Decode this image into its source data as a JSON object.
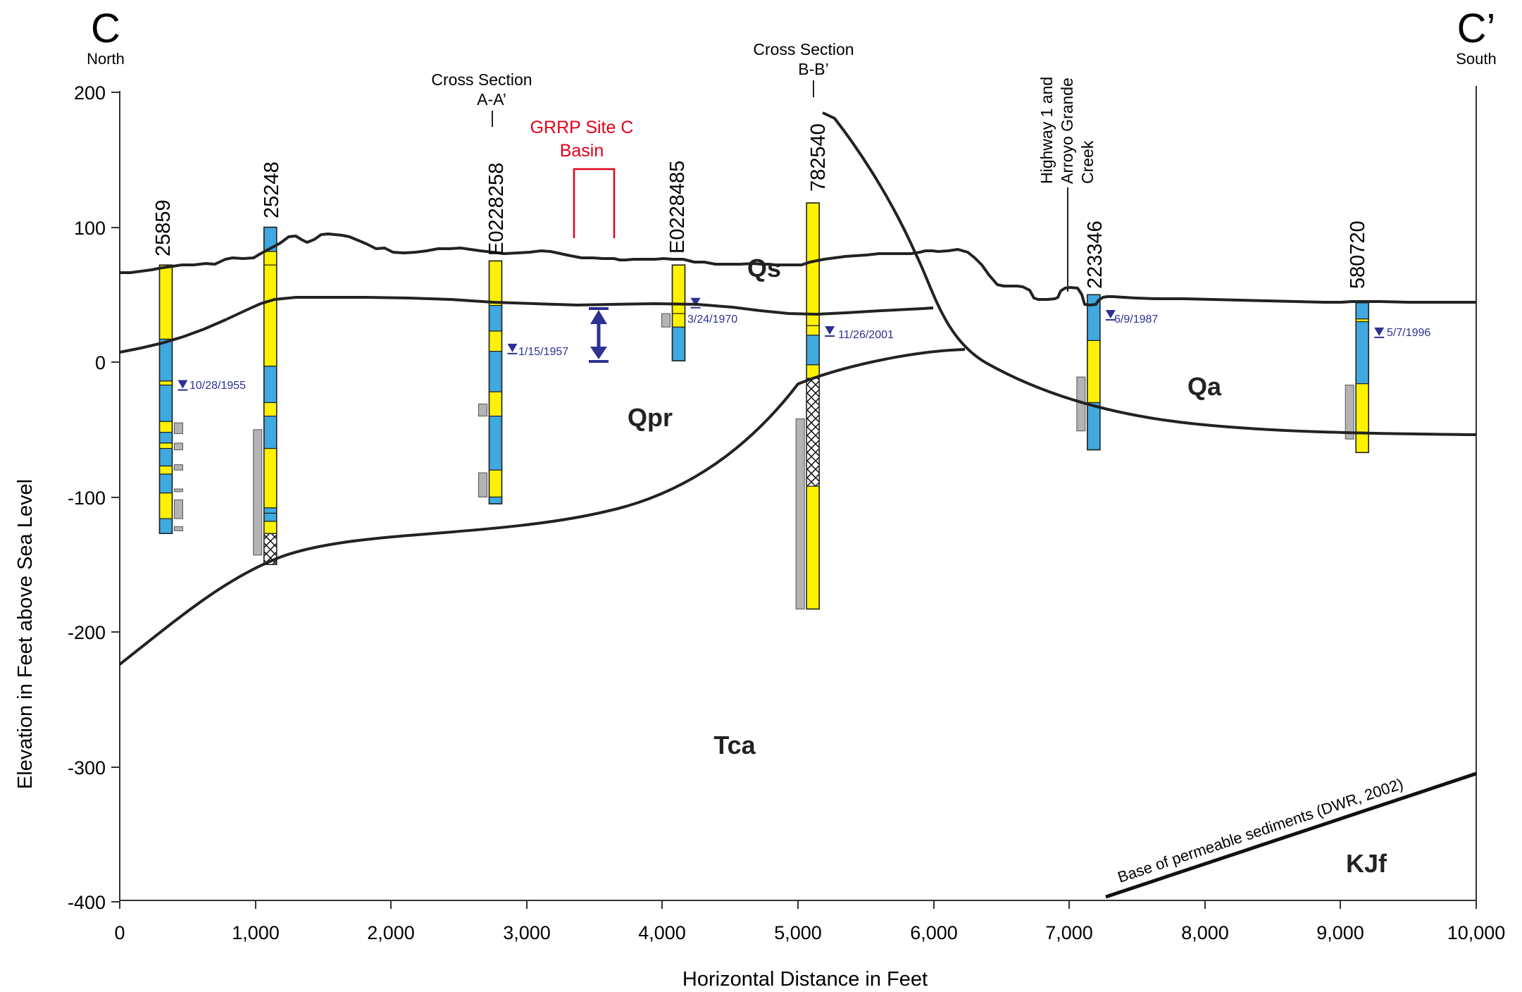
{
  "section": {
    "left_label": "C",
    "left_direction": "North",
    "right_label": "C’",
    "right_direction": "South",
    "y_axis_label": "Elevation in Feet above Sea Level",
    "x_axis_label": "Horizontal Distance in Feet",
    "x_ticks": [
      "0",
      "1,000",
      "2,000",
      "3,000",
      "4,000",
      "5,000",
      "6,000",
      "7,000",
      "8,000",
      "9,000",
      "10,000"
    ],
    "y_ticks": [
      "200",
      "100",
      "0",
      "-100",
      "-200",
      "-300",
      "-400"
    ],
    "xlim": [
      0,
      10000
    ],
    "ylim": [
      -400,
      200
    ]
  },
  "cross_sections": [
    {
      "line1": "Cross Section",
      "line2": "A-A’",
      "x": 2750
    },
    {
      "line1": "Cross Section",
      "line2": "B-B’",
      "x": 5100
    }
  ],
  "basin": {
    "line1": "GRRP Site C",
    "line2": "Basin",
    "color": "#e3001b"
  },
  "highway": {
    "line1": "Highway 1 and",
    "line2": "Arroyo Grande",
    "line3": "Creek",
    "x": 7000
  },
  "units": {
    "qs": "Qs",
    "qpr": "Qpr",
    "qa": "Qa",
    "tca": "Tca",
    "kjf": "KJf"
  },
  "base_label": "Base of permeable sediments (DWR, 2002)",
  "colors": {
    "sand": "#fff200",
    "clay": "#3fa9e0",
    "screen": "#b3b3b3",
    "water": "#2e3092",
    "basin": "#e3001b"
  },
  "wells": [
    {
      "id": "25859",
      "x": 340,
      "top": 72,
      "bottom": -127,
      "water_level": -17,
      "date": "10/28/1955"
    },
    {
      "id": "25248",
      "x": 1110,
      "top": 100,
      "bottom": -150
    },
    {
      "id": "E0228258",
      "x": 2770,
      "top": 75,
      "bottom": -105,
      "water_level": 10,
      "date": "1/15/1957"
    },
    {
      "id": "E0228485",
      "x": 4120,
      "top": 72,
      "bottom": 1,
      "water_level": 44,
      "date": "3/24/1970"
    },
    {
      "id": "782540",
      "x": 5110,
      "top": 118,
      "bottom": -183,
      "water_level": 23,
      "date": "11/26/2001"
    },
    {
      "id": "223346",
      "x": 7180,
      "top": 50,
      "bottom": -65,
      "water_level": 35,
      "date": "6/9/1987"
    },
    {
      "id": "580720",
      "x": 9160,
      "top": 44,
      "bottom": -67,
      "water_level": 22,
      "date": "5/7/1996"
    }
  ]
}
